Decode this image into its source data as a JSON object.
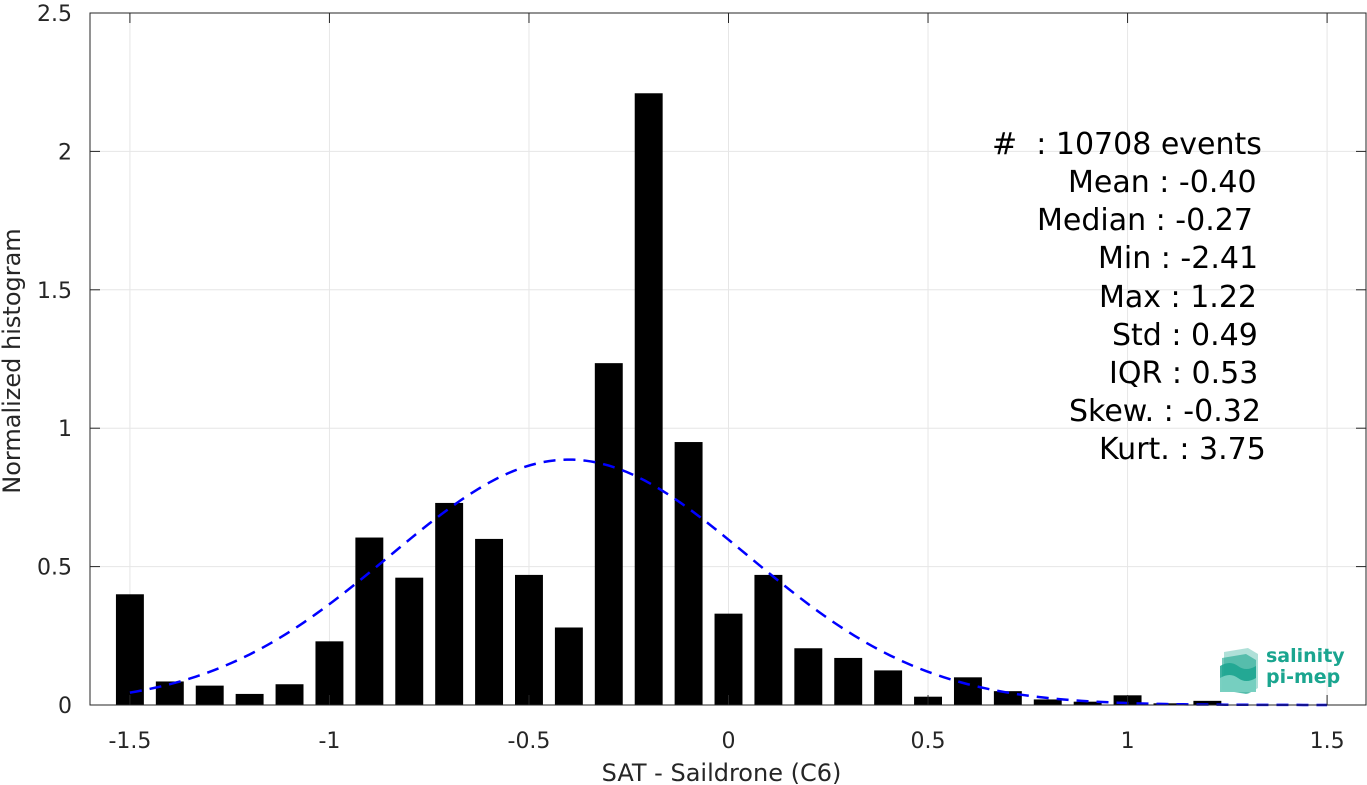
{
  "chart_data": {
    "type": "bar",
    "xlabel": "SAT - Saildrone (C6)",
    "ylabel": "Normalized histogram",
    "xlim": [
      -1.6,
      1.6
    ],
    "ylim": [
      0,
      2.5
    ],
    "xticks": [
      "-1.5",
      "-1",
      "-0.5",
      "0",
      "0.5",
      "1",
      "1.5"
    ],
    "xtick_values": [
      -1.5,
      -1,
      -0.5,
      0,
      0.5,
      1,
      1.5
    ],
    "yticks": [
      "0",
      "0.5",
      "1",
      "1.5",
      "2",
      "2.5"
    ],
    "ytick_values": [
      0,
      0.5,
      1,
      1.5,
      2,
      2.5
    ],
    "grid": true,
    "bar_color": "#000000",
    "bins": [
      {
        "x": -1.5,
        "value": 0.4
      },
      {
        "x": -1.4,
        "value": 0.085
      },
      {
        "x": -1.3,
        "value": 0.07
      },
      {
        "x": -1.2,
        "value": 0.04
      },
      {
        "x": -1.1,
        "value": 0.075
      },
      {
        "x": -1.0,
        "value": 0.23
      },
      {
        "x": -0.9,
        "value": 0.605
      },
      {
        "x": -0.8,
        "value": 0.46
      },
      {
        "x": -0.7,
        "value": 0.73
      },
      {
        "x": -0.6,
        "value": 0.6
      },
      {
        "x": -0.5,
        "value": 0.47
      },
      {
        "x": -0.4,
        "value": 0.28
      },
      {
        "x": -0.3,
        "value": 1.235
      },
      {
        "x": -0.2,
        "value": 2.21
      },
      {
        "x": -0.1,
        "value": 0.95
      },
      {
        "x": 0.0,
        "value": 0.33
      },
      {
        "x": 0.1,
        "value": 0.47
      },
      {
        "x": 0.2,
        "value": 0.205
      },
      {
        "x": 0.3,
        "value": 0.17
      },
      {
        "x": 0.4,
        "value": 0.125
      },
      {
        "x": 0.5,
        "value": 0.03
      },
      {
        "x": 0.6,
        "value": 0.1
      },
      {
        "x": 0.7,
        "value": 0.05
      },
      {
        "x": 0.8,
        "value": 0.02
      },
      {
        "x": 0.9,
        "value": 0.012
      },
      {
        "x": 1.0,
        "value": 0.035
      },
      {
        "x": 1.1,
        "value": 0.006
      },
      {
        "x": 1.2,
        "value": 0.015
      }
    ],
    "fit_curve": {
      "style": "dashed",
      "color": "#0000ff",
      "mean": -0.4,
      "std": 0.45,
      "x_range": [
        -1.5,
        1.5
      ]
    },
    "stats": {
      "events": "#  : 10708 events",
      "mean": "Mean : -0.40",
      "median": "Median : -0.27",
      "min": "Min : -2.41",
      "max": "Max : 1.22",
      "std": "Std : 0.49",
      "iqr": "IQR : 0.53",
      "skew": "Skew. : -0.32",
      "kurt": "Kurt. : 3.75"
    }
  },
  "logo": {
    "line1": "salinity",
    "line2": "pi-mep"
  }
}
